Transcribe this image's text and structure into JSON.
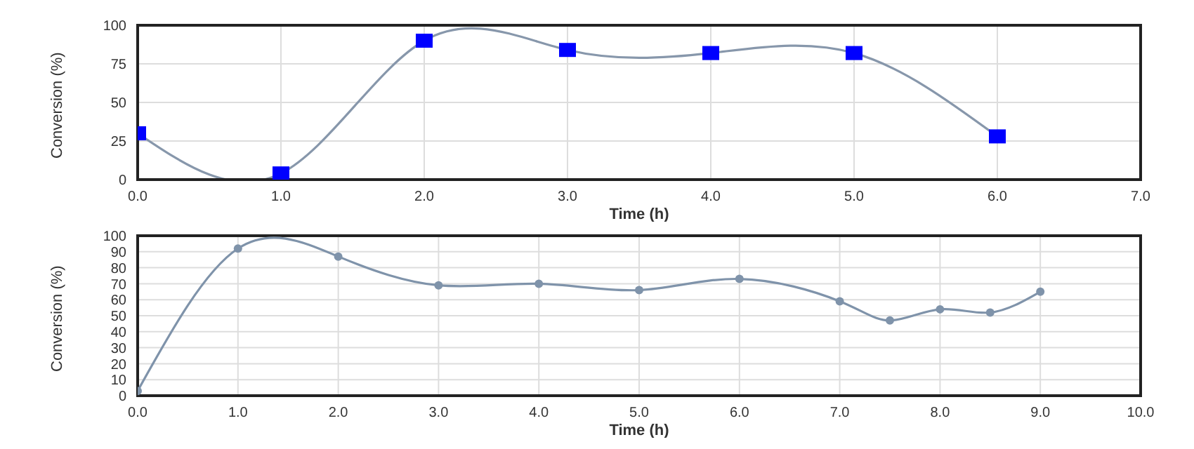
{
  "chart_data": [
    {
      "type": "line",
      "xlabel": "Time (h)",
      "ylabel": "Conversion (%)",
      "x": [
        0,
        1,
        2,
        3,
        4,
        5,
        6
      ],
      "series": [
        {
          "color": "#0000ff",
          "values": [
            30,
            4,
            90,
            84,
            82,
            82,
            28
          ]
        }
      ],
      "xlim": [
        0,
        7
      ],
      "xticks": [
        {
          "value": 0,
          "label": "0.0"
        },
        {
          "value": 1,
          "label": "1.0"
        },
        {
          "value": 2,
          "label": "2.0"
        },
        {
          "value": 3,
          "label": "3.0"
        },
        {
          "value": 4,
          "label": "4.0"
        },
        {
          "value": 5,
          "label": "5.0"
        },
        {
          "value": 6,
          "label": "6.0"
        },
        {
          "value": 7,
          "label": "7.0"
        }
      ],
      "ylim": [
        0,
        100
      ],
      "yticks": [
        0,
        25,
        50,
        75,
        100
      ],
      "grid": true,
      "marker": "square",
      "line_style": "solid",
      "legend": false
    },
    {
      "type": "line",
      "xlabel": "Time (h)",
      "ylabel": "Conversion (%)",
      "x": [
        0,
        1,
        2,
        3,
        4,
        5,
        6,
        7,
        7.5,
        8,
        8.5,
        9
      ],
      "series": [
        {
          "color": "#7f93aa",
          "values": [
            3,
            92,
            87,
            69,
            70,
            66,
            73,
            59,
            47,
            54,
            52,
            65
          ]
        }
      ],
      "xlim": [
        0,
        10
      ],
      "xticks": [
        {
          "value": 0,
          "label": "0.0"
        },
        {
          "value": 1,
          "label": "1.0"
        },
        {
          "value": 2,
          "label": "2.0"
        },
        {
          "value": 3,
          "label": "3.0"
        },
        {
          "value": 4,
          "label": "4.0"
        },
        {
          "value": 5,
          "label": "5.0"
        },
        {
          "value": 6,
          "label": "6.0"
        },
        {
          "value": 7,
          "label": "7.0"
        },
        {
          "value": 8,
          "label": "8.0"
        },
        {
          "value": 9,
          "label": "9.0"
        },
        {
          "value": 10,
          "label": "10.0"
        }
      ],
      "ylim": [
        0,
        100
      ],
      "yticks": [
        0,
        10,
        20,
        30,
        40,
        50,
        60,
        70,
        80,
        90,
        100
      ],
      "grid": true,
      "marker": "circle",
      "line_style": "solid",
      "legend": false
    }
  ]
}
